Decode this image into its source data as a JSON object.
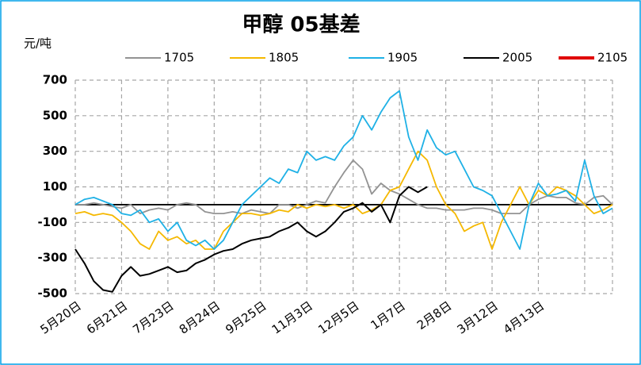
{
  "chart_data": {
    "type": "line",
    "title": "甲醇 05基差",
    "y_label": "元/吨",
    "categories": [
      "5月20日",
      null,
      null,
      null,
      null,
      "6月21日",
      null,
      null,
      null,
      null,
      "7月23日",
      null,
      null,
      null,
      null,
      "8月24日",
      null,
      null,
      null,
      null,
      "9月25日",
      null,
      null,
      null,
      null,
      "11月3日",
      null,
      null,
      null,
      null,
      "12月5日",
      null,
      null,
      null,
      null,
      "1月7日",
      null,
      null,
      null,
      null,
      "2月8日",
      null,
      null,
      null,
      null,
      "3月12日",
      null,
      null,
      null,
      null,
      "4月13日",
      null,
      null,
      null,
      null,
      null,
      null,
      null,
      null
    ],
    "series": [
      {
        "name": "1705",
        "color": "#939393",
        "values": [
          0,
          0,
          10,
          0,
          -10,
          -20,
          0,
          -50,
          -30,
          -20,
          -30,
          0,
          10,
          0,
          -40,
          -50,
          -50,
          -40,
          -50,
          -30,
          -40,
          -50,
          0,
          0,
          -20,
          0,
          20,
          10,
          100,
          180,
          250,
          200,
          60,
          120,
          80,
          60,
          30,
          0,
          -20,
          -20,
          -30,
          -30,
          -30,
          -20,
          -20,
          -30,
          -50,
          -50,
          -50,
          0,
          30,
          50,
          40,
          40,
          10,
          0,
          40,
          50,
          0
        ]
      },
      {
        "name": "1805",
        "color": "#f5b800",
        "values": [
          -50,
          -40,
          -60,
          -50,
          -60,
          -100,
          -150,
          -220,
          -250,
          -150,
          -200,
          -180,
          -220,
          -200,
          -250,
          -250,
          -150,
          -100,
          -50,
          -50,
          -60,
          -50,
          -30,
          -40,
          0,
          -20,
          0,
          -10,
          0,
          -20,
          0,
          -50,
          -30,
          0,
          80,
          100,
          200,
          300,
          250,
          100,
          0,
          -50,
          -150,
          -120,
          -100,
          -250,
          -100,
          0,
          100,
          0,
          80,
          50,
          100,
          80,
          50,
          0,
          -50,
          -30,
          0
        ]
      },
      {
        "name": "1905",
        "color": "#1fb1e6",
        "values": [
          0,
          30,
          40,
          20,
          0,
          -50,
          -60,
          -30,
          -100,
          -80,
          -150,
          -100,
          -200,
          -230,
          -200,
          -250,
          -200,
          -100,
          0,
          50,
          100,
          150,
          120,
          200,
          180,
          300,
          250,
          270,
          250,
          330,
          380,
          500,
          420,
          520,
          600,
          640,
          380,
          250,
          420,
          320,
          280,
          300,
          200,
          100,
          80,
          50,
          -50,
          -150,
          -250,
          0,
          120,
          50,
          60,
          80,
          20,
          250,
          50,
          -50,
          -20
        ]
      },
      {
        "name": "2005",
        "color": "#000000",
        "values": [
          -250,
          -330,
          -430,
          -480,
          -490,
          -400,
          -350,
          -400,
          -390,
          -370,
          -350,
          -380,
          -370,
          -330,
          -310,
          -280,
          -260,
          -250,
          -220,
          -200,
          -190,
          -180,
          -150,
          -130,
          -100,
          -150,
          -180,
          -150,
          -100,
          -40,
          -20,
          10,
          -40,
          0,
          -100,
          50,
          100,
          70,
          100,
          null,
          null,
          null,
          null,
          null,
          null,
          null,
          null,
          null,
          null,
          null,
          null,
          null,
          null,
          null,
          null,
          null,
          null,
          null,
          null
        ]
      },
      {
        "name": "2105",
        "color": "#e00000",
        "values": [
          null,
          null,
          null,
          null,
          null,
          null,
          null,
          null,
          null,
          null,
          null,
          null,
          null,
          null,
          null,
          null,
          null,
          null,
          null,
          null,
          null,
          null,
          null,
          null,
          null,
          null,
          null,
          null,
          null,
          null,
          null,
          null,
          null,
          null,
          null,
          null,
          null,
          null,
          null,
          null,
          null,
          null,
          null,
          null,
          null,
          null,
          null,
          null,
          null,
          null,
          null,
          null,
          null,
          null,
          null,
          null,
          null,
          null,
          null
        ]
      }
    ],
    "ylim": [
      -500,
      700
    ],
    "yticks": [
      -500,
      -300,
      -100,
      100,
      300,
      500,
      700
    ],
    "grid": true
  }
}
